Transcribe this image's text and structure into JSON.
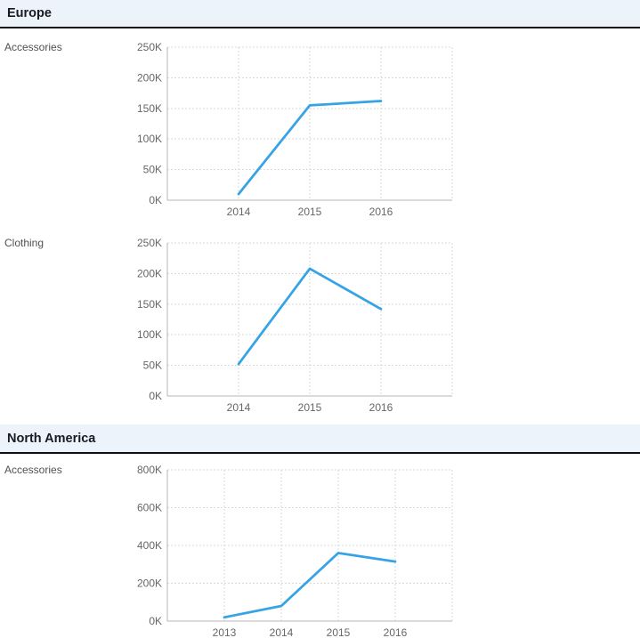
{
  "report": {
    "sections": [
      {
        "title": "Europe",
        "rows": [
          {
            "label": "Accessories",
            "chart_index": 0
          },
          {
            "label": "Clothing",
            "chart_index": 1
          }
        ]
      },
      {
        "title": "North America",
        "rows": [
          {
            "label": "Accessories",
            "chart_index": 2
          }
        ]
      }
    ]
  },
  "style": {
    "line_color": "#35A3E6",
    "grid_color": "#d9d9d9",
    "axis_color": "#b5b5b5",
    "tick_color": "#666666",
    "label_color": "#515151",
    "header_bg": "#ecf3fb",
    "header_text": "#181b22",
    "header_border": "#0d0f14",
    "background": "#ffffff"
  },
  "chart_data": [
    {
      "type": "line",
      "section": "Europe",
      "category": "Accessories",
      "title": "",
      "xlabel": "",
      "ylabel": "",
      "x": [
        "2014",
        "2015",
        "2016"
      ],
      "series": [
        {
          "name": "Accessories",
          "values": [
            10000,
            155000,
            162000
          ]
        }
      ],
      "ylim": [
        0,
        250000
      ],
      "ytick_labels": [
        "250K",
        "200K",
        "150K",
        "100K",
        "50K",
        "0K"
      ],
      "grid": true,
      "legend": false
    },
    {
      "type": "line",
      "section": "Europe",
      "category": "Clothing",
      "title": "",
      "xlabel": "",
      "ylabel": "",
      "x": [
        "2014",
        "2015",
        "2016"
      ],
      "series": [
        {
          "name": "Clothing",
          "values": [
            52000,
            208000,
            142000
          ]
        }
      ],
      "ylim": [
        0,
        250000
      ],
      "ytick_labels": [
        "250K",
        "200K",
        "150K",
        "100K",
        "50K",
        "0K"
      ],
      "grid": true,
      "legend": false
    },
    {
      "type": "line",
      "section": "North America",
      "category": "Accessories",
      "title": "",
      "xlabel": "",
      "ylabel": "",
      "x": [
        "2013",
        "2014",
        "2015",
        "2016"
      ],
      "series": [
        {
          "name": "Accessories",
          "values": [
            20000,
            80000,
            360000,
            315000
          ]
        }
      ],
      "ylim": [
        0,
        800000
      ],
      "ytick_labels": [
        "800K",
        "600K",
        "400K",
        "200K",
        "0K"
      ],
      "grid": true,
      "legend": false
    }
  ]
}
